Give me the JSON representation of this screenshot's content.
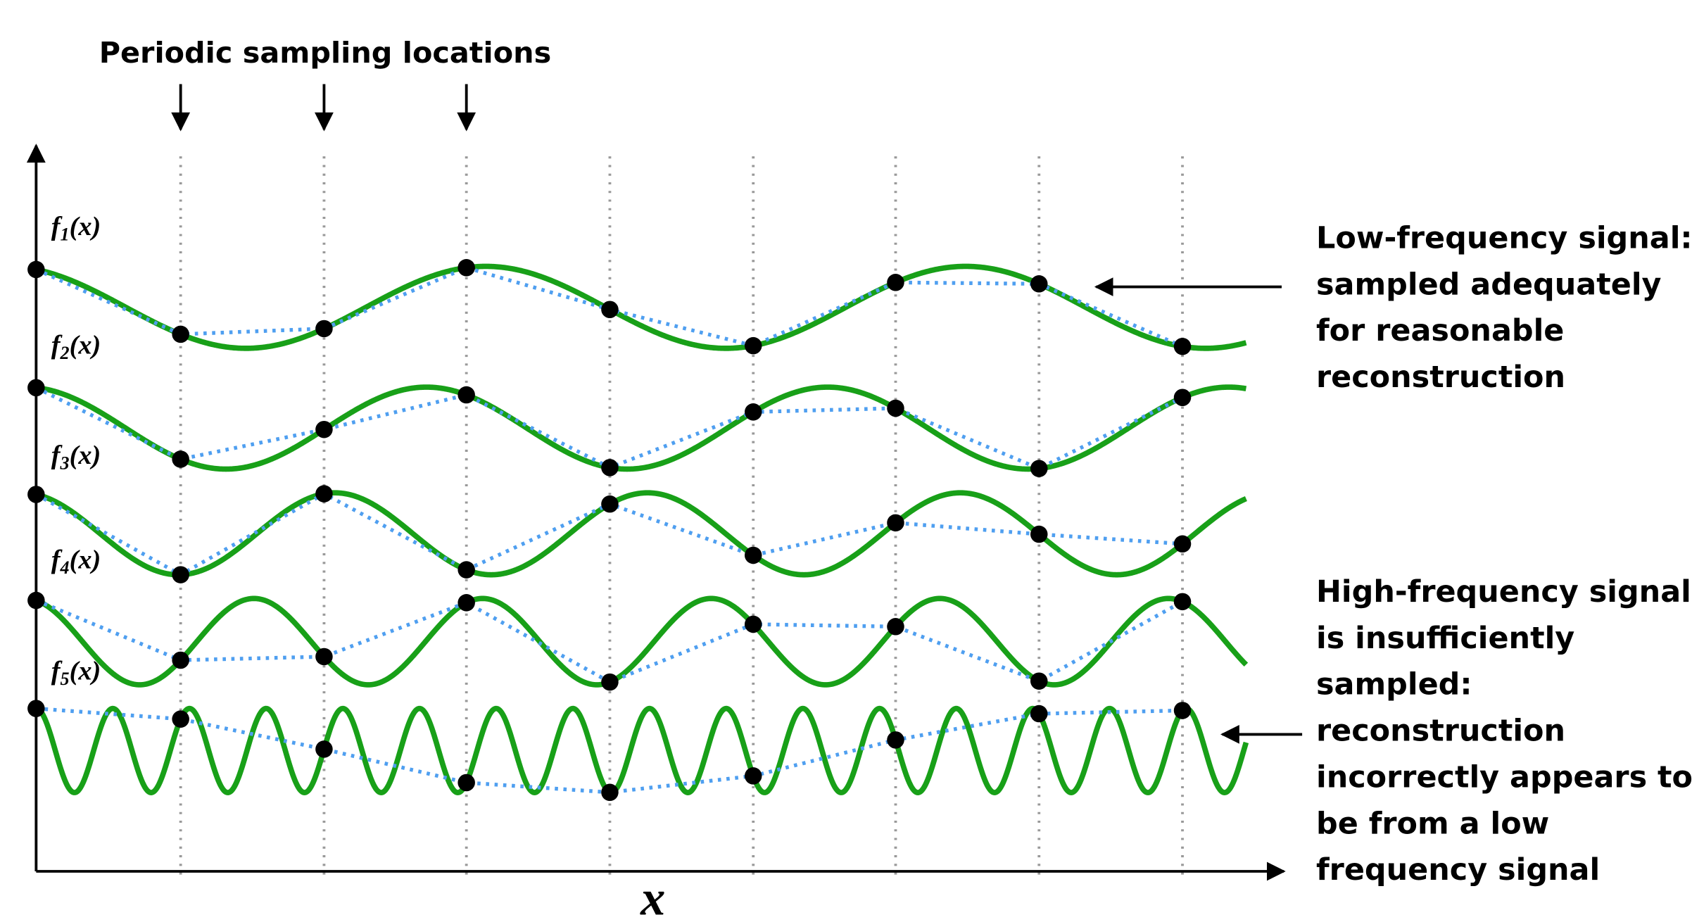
{
  "title": "Periodic sampling locations",
  "signals": [
    {
      "f": "f",
      "sub": "1",
      "arg": "(x)"
    },
    {
      "f": "f",
      "sub": "2",
      "arg": "(x)"
    },
    {
      "f": "f",
      "sub": "3",
      "arg": "(x)"
    },
    {
      "f": "f",
      "sub": "4",
      "arg": "(x)"
    },
    {
      "f": "f",
      "sub": "5",
      "arg": "(x)"
    }
  ],
  "annotations": [
    {
      "lines": [
        "Low-frequency signal:",
        "sampled adequately",
        "for reasonable",
        "reconstruction"
      ]
    },
    {
      "lines": [
        "High-frequency signal",
        "is insufficiently",
        "sampled:",
        "reconstruction",
        "incorrectly appears to",
        "be from a low",
        "frequency signal"
      ]
    }
  ],
  "x_axis_label": "x"
}
